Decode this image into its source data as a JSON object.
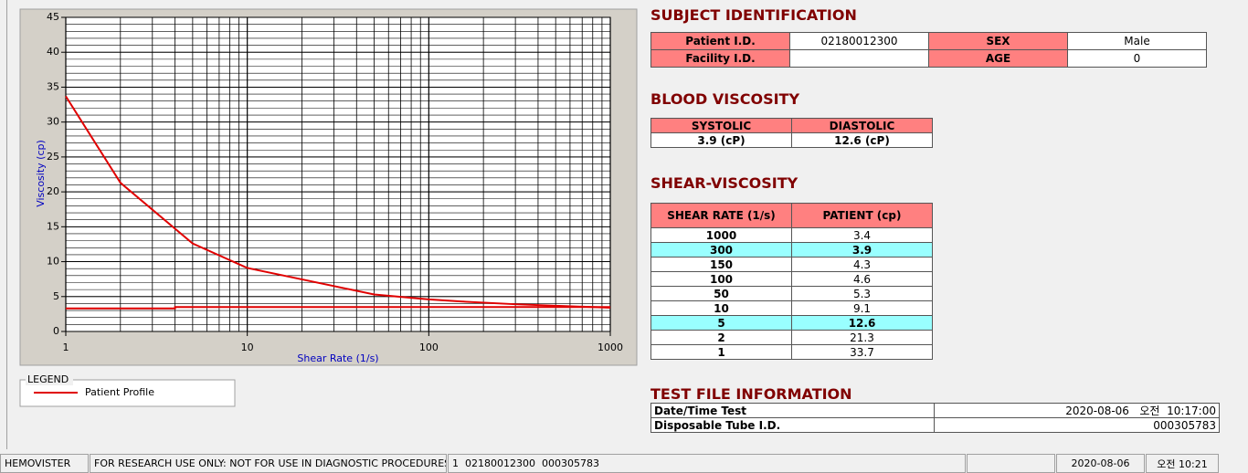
{
  "chart_data": {
    "type": "line",
    "x_label": "Shear Rate (1/s)",
    "y_label": "Viscosity (cp)",
    "log_x": true,
    "grid": true,
    "minor_grid": true,
    "xlim": [
      1,
      1000
    ],
    "ylim": [
      0,
      45
    ],
    "xticks": [
      1,
      10,
      100,
      1000
    ],
    "yticks": [
      0,
      5,
      10,
      15,
      20,
      25,
      30,
      35,
      40,
      45
    ],
    "legend_title": "LEGEND",
    "series": [
      {
        "name": "Patient Profile",
        "color": "#e00000",
        "x": [
          1,
          2,
          5,
          10,
          50,
          100,
          150,
          300,
          1000
        ],
        "values": [
          33.7,
          21.3,
          12.6,
          9.1,
          5.3,
          4.6,
          4.3,
          3.9,
          3.4
        ]
      },
      {
        "color": "#e00000",
        "x": [
          1,
          4,
          4,
          1000
        ],
        "values": [
          3.3,
          3.3,
          3.5,
          3.5
        ]
      }
    ]
  },
  "subject": {
    "title": "SUBJECT IDENTIFICATION",
    "rows": [
      [
        "Patient I.D.",
        "02180012300",
        "SEX",
        "Male"
      ],
      [
        "Facility I.D.",
        null,
        "AGE",
        "0"
      ]
    ]
  },
  "blood": {
    "title": "BLOOD VISCOSITY",
    "headers": [
      "SYSTOLIC",
      "DIASTOLIC"
    ],
    "values": [
      "3.9 (cP)",
      "12.6 (cP)"
    ]
  },
  "shear": {
    "title": "SHEAR-VISCOSITY",
    "headers": [
      "SHEAR RATE (1/s)",
      "PATIENT (cp)"
    ],
    "highlight": [
      1,
      6
    ],
    "rows": [
      [
        "1000",
        "3.4"
      ],
      [
        "300",
        "3.9"
      ],
      [
        "150",
        "4.3"
      ],
      [
        "100",
        "4.6"
      ],
      [
        "50",
        "5.3"
      ],
      [
        "10",
        "9.1"
      ],
      [
        "5",
        "12.6"
      ],
      [
        "2",
        "21.3"
      ],
      [
        "1",
        "33.7"
      ]
    ]
  },
  "test_file": {
    "title": "TEST FILE INFORMATION",
    "rows": [
      [
        "Date/Time Test",
        "2020-08-06   오전  10:17:00"
      ],
      [
        "Disposable Tube I.D.",
        "000305783"
      ]
    ]
  },
  "status_bar": [
    "HEMOVISTER",
    "FOR RESEARCH USE ONLY: NOT FOR USE IN DIAGNOSTIC PROCEDURES",
    "1  02180012300  000305783",
    "2020-08-06",
    "오전 10:21"
  ]
}
